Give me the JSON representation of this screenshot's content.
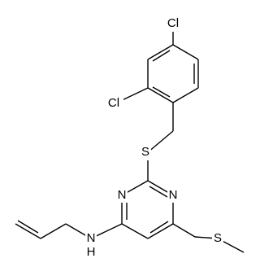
{
  "atoms": [
    "Cl",
    "Cl",
    "S",
    "N",
    "N",
    "N",
    "H",
    "S"
  ]
}
